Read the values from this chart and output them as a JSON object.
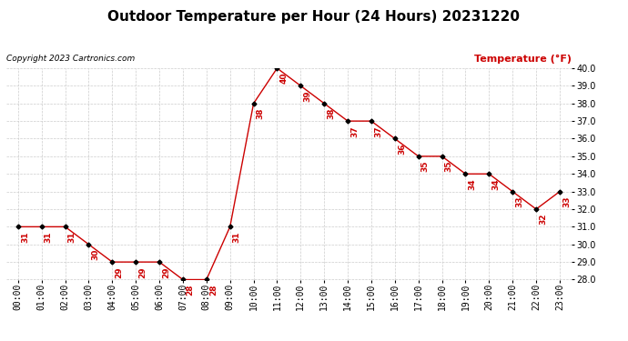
{
  "title": "Outdoor Temperature per Hour (24 Hours) 20231220",
  "copyright_text": "Copyright 2023 Cartronics.com",
  "legend_label": "Temperature (°F)",
  "hours": [
    "00:00",
    "01:00",
    "02:00",
    "03:00",
    "04:00",
    "05:00",
    "06:00",
    "07:00",
    "08:00",
    "09:00",
    "10:00",
    "11:00",
    "12:00",
    "13:00",
    "14:00",
    "15:00",
    "16:00",
    "17:00",
    "18:00",
    "19:00",
    "20:00",
    "21:00",
    "22:00",
    "23:00"
  ],
  "temperatures": [
    31,
    31,
    31,
    30,
    29,
    29,
    29,
    28,
    28,
    31,
    38,
    40,
    39,
    38,
    37,
    37,
    36,
    35,
    35,
    34,
    34,
    33,
    32,
    33
  ],
  "ylim": [
    28.0,
    40.0
  ],
  "yticks": [
    28.0,
    29.0,
    30.0,
    31.0,
    32.0,
    33.0,
    34.0,
    35.0,
    36.0,
    37.0,
    38.0,
    39.0,
    40.0
  ],
  "line_color": "#cc0000",
  "marker_color": "#000000",
  "title_fontsize": 11,
  "label_fontsize": 7,
  "annotation_color": "#cc0000",
  "annotation_fontsize": 6.5,
  "copyright_fontsize": 6.5,
  "legend_color": "#cc0000",
  "legend_fontsize": 8,
  "background_color": "#ffffff",
  "grid_color": "#cccccc"
}
